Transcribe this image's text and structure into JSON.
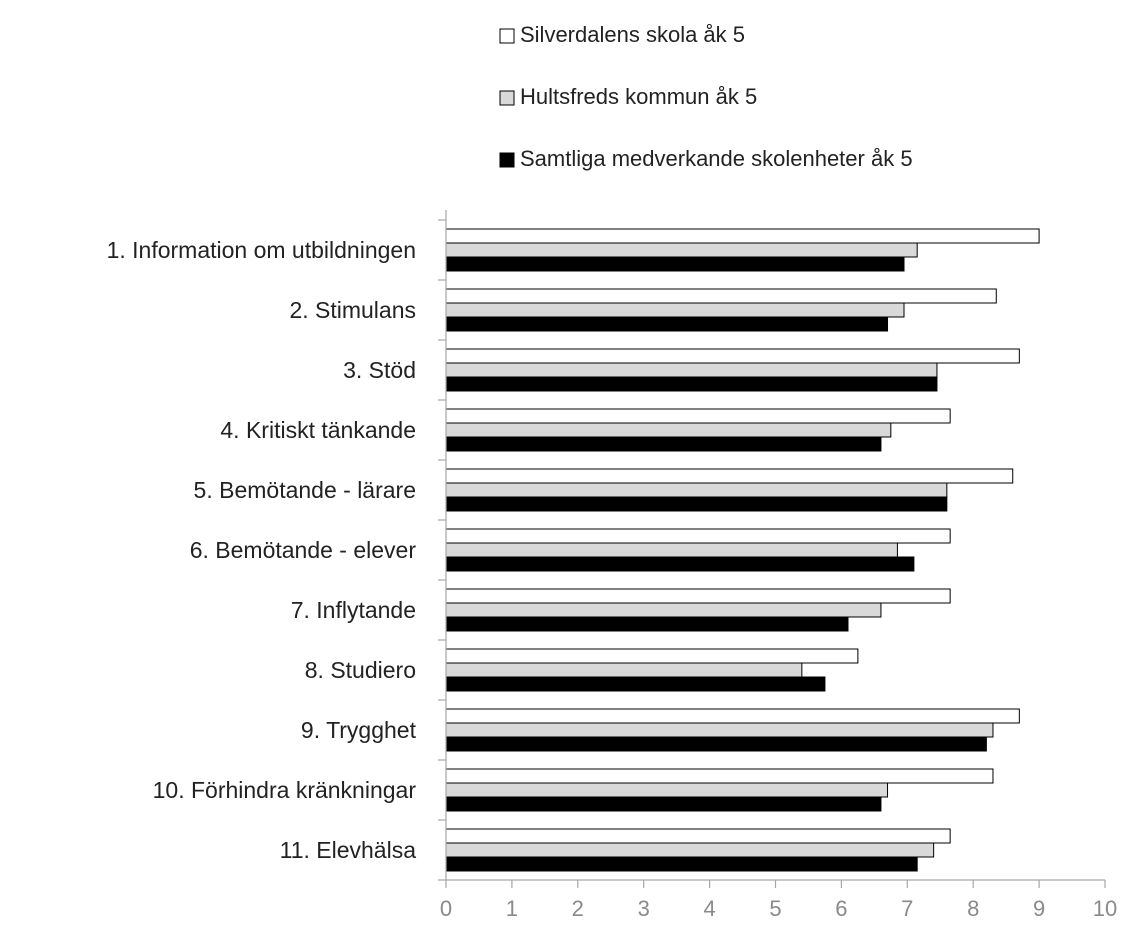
{
  "chart_data": {
    "type": "bar",
    "orientation": "horizontal",
    "categories": [
      "1. Information om utbildningen",
      "2. Stimulans",
      "3. Stöd",
      "4. Kritiskt tänkande",
      "5. Bemötande - lärare",
      "6. Bemötande - elever",
      "7. Inflytande",
      "8. Studiero",
      "9. Trygghet",
      "10. Förhindra kränkningar",
      "11. Elevhälsa"
    ],
    "series": [
      {
        "name": "Silverdalens skola åk 5",
        "color": "#ffffff",
        "values": [
          9.0,
          8.35,
          8.7,
          7.65,
          8.6,
          7.65,
          7.65,
          6.25,
          8.7,
          8.3,
          7.65
        ]
      },
      {
        "name": "Hultsfreds kommun åk 5",
        "color": "#d9d9d9",
        "values": [
          7.15,
          6.95,
          7.45,
          6.75,
          7.6,
          6.85,
          6.6,
          5.4,
          8.3,
          6.7,
          7.4
        ]
      },
      {
        "name": "Samtliga medverkande skolenheter åk 5",
        "color": "#000000",
        "values": [
          6.95,
          6.7,
          7.45,
          6.6,
          7.6,
          7.1,
          6.1,
          5.75,
          8.2,
          6.6,
          7.15
        ]
      }
    ],
    "x_ticks": [
      "0",
      "1",
      "2",
      "3",
      "4",
      "5",
      "6",
      "7",
      "8",
      "9",
      "10"
    ],
    "xlim": [
      0,
      10
    ],
    "grid": false,
    "legend_position": "top"
  }
}
